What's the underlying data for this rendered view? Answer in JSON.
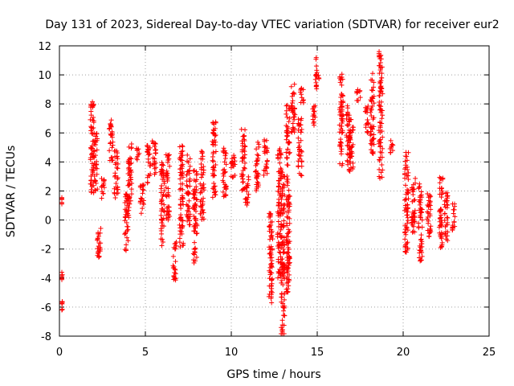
{
  "chart_data": {
    "type": "scatter",
    "title": "Day 131 of 2023, Sidereal Day-to-day VTEC variation (SDTVAR) for receiver eur2",
    "xlabel": "GPS time / hours",
    "ylabel": "SDTVAR / TECUs",
    "xlim": [
      0,
      25
    ],
    "ylim": [
      -8,
      12
    ],
    "xticks": [
      0,
      5,
      10,
      15,
      20,
      25
    ],
    "xtick_labels": [
      "0",
      "5",
      "10",
      "15",
      "20",
      "25"
    ],
    "yticks": [
      -8,
      -6,
      -4,
      -2,
      0,
      2,
      4,
      6,
      8,
      10,
      12
    ],
    "ytick_labels": [
      "-8",
      "-6",
      "-4",
      "-2",
      "0",
      "2",
      "4",
      "6",
      "8",
      "10",
      "12"
    ],
    "grid": true,
    "marker": "+",
    "color": "#ff0000",
    "clusters": [
      {
        "x": 0.05,
        "ymin": 1.0,
        "ymax": 1.6
      },
      {
        "x": 0.1,
        "ymin": -4.4,
        "ymax": -3.6
      },
      {
        "x": 0.1,
        "ymin": -6.2,
        "ymax": -5.5
      },
      {
        "x": 1.9,
        "ymin": 1.8,
        "ymax": 8.3
      },
      {
        "x": 2.1,
        "ymin": 2.0,
        "ymax": 6.0
      },
      {
        "x": 2.3,
        "ymin": -3.0,
        "ymax": -0.5
      },
      {
        "x": 2.5,
        "ymin": 1.5,
        "ymax": 3.0
      },
      {
        "x": 3.0,
        "ymin": 4.0,
        "ymax": 7.0
      },
      {
        "x": 3.3,
        "ymin": 1.5,
        "ymax": 4.8
      },
      {
        "x": 3.9,
        "ymin": -2.2,
        "ymax": 2.0
      },
      {
        "x": 4.1,
        "ymin": 0.0,
        "ymax": 5.5
      },
      {
        "x": 4.6,
        "ymin": 4.0,
        "ymax": 5.0
      },
      {
        "x": 4.8,
        "ymin": 0.3,
        "ymax": 2.5
      },
      {
        "x": 5.2,
        "ymin": 2.5,
        "ymax": 5.2
      },
      {
        "x": 5.5,
        "ymin": 3.0,
        "ymax": 5.6
      },
      {
        "x": 6.0,
        "ymin": -2.0,
        "ymax": 4.0
      },
      {
        "x": 6.3,
        "ymin": 0.0,
        "ymax": 4.5
      },
      {
        "x": 6.7,
        "ymin": -4.2,
        "ymax": -1.5
      },
      {
        "x": 7.1,
        "ymin": -2.0,
        "ymax": 5.3
      },
      {
        "x": 7.5,
        "ymin": -0.5,
        "ymax": 4.5
      },
      {
        "x": 7.9,
        "ymin": -3.0,
        "ymax": 3.5
      },
      {
        "x": 8.3,
        "ymin": 0.0,
        "ymax": 4.8
      },
      {
        "x": 9.0,
        "ymin": 1.5,
        "ymax": 6.8
      },
      {
        "x": 9.6,
        "ymin": 1.5,
        "ymax": 5.0
      },
      {
        "x": 10.1,
        "ymin": 2.5,
        "ymax": 4.6
      },
      {
        "x": 10.7,
        "ymin": 2.0,
        "ymax": 6.7
      },
      {
        "x": 10.9,
        "ymin": 1.0,
        "ymax": 3.0
      },
      {
        "x": 11.5,
        "ymin": 2.0,
        "ymax": 5.4
      },
      {
        "x": 12.0,
        "ymin": 3.0,
        "ymax": 5.6
      },
      {
        "x": 12.3,
        "ymin": -6.5,
        "ymax": 0.5
      },
      {
        "x": 12.8,
        "ymin": -4.0,
        "ymax": 5.0
      },
      {
        "x": 13.0,
        "ymin": -8.0,
        "ymax": 3.5
      },
      {
        "x": 13.3,
        "ymin": -5.0,
        "ymax": 8.0
      },
      {
        "x": 13.6,
        "ymin": 6.0,
        "ymax": 9.5
      },
      {
        "x": 14.0,
        "ymin": 3.0,
        "ymax": 7.0
      },
      {
        "x": 14.1,
        "ymin": 8.0,
        "ymax": 9.2
      },
      {
        "x": 14.8,
        "ymin": 6.5,
        "ymax": 8.0
      },
      {
        "x": 15.0,
        "ymin": 9.0,
        "ymax": 11.2
      },
      {
        "x": 16.4,
        "ymin": 3.5,
        "ymax": 10.2
      },
      {
        "x": 16.8,
        "ymin": 3.2,
        "ymax": 8.0
      },
      {
        "x": 17.0,
        "ymin": 3.5,
        "ymax": 7.0
      },
      {
        "x": 17.4,
        "ymin": 8.2,
        "ymax": 9.3
      },
      {
        "x": 17.9,
        "ymin": 6.0,
        "ymax": 8.0
      },
      {
        "x": 18.2,
        "ymin": 4.5,
        "ymax": 10.2
      },
      {
        "x": 18.7,
        "ymin": 2.8,
        "ymax": 11.7
      },
      {
        "x": 19.3,
        "ymin": 4.5,
        "ymax": 5.5
      },
      {
        "x": 20.2,
        "ymin": -2.5,
        "ymax": 4.7
      },
      {
        "x": 20.6,
        "ymin": -1.0,
        "ymax": 3.0
      },
      {
        "x": 21.0,
        "ymin": -3.0,
        "ymax": 2.5
      },
      {
        "x": 21.5,
        "ymin": -1.5,
        "ymax": 2.0
      },
      {
        "x": 22.2,
        "ymin": -2.0,
        "ymax": 3.0
      },
      {
        "x": 22.5,
        "ymin": -1.5,
        "ymax": 2.0
      },
      {
        "x": 22.9,
        "ymin": -0.8,
        "ymax": 1.2
      }
    ]
  }
}
